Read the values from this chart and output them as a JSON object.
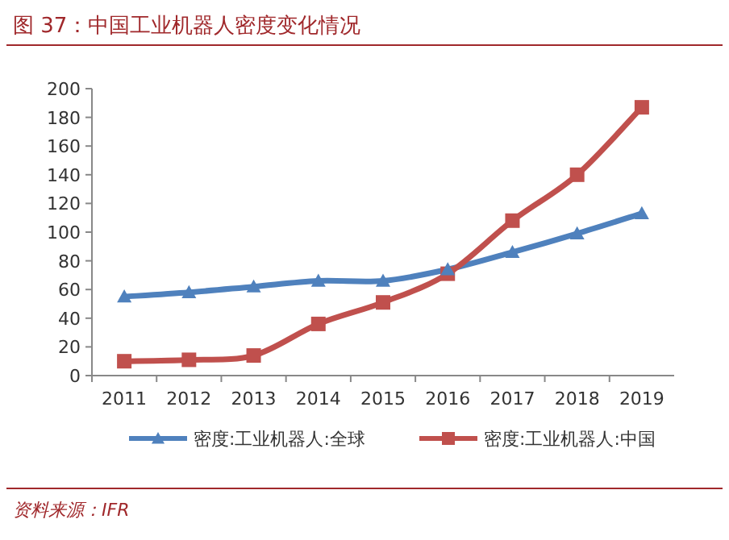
{
  "chart_data": {
    "type": "line",
    "title": "图 37：中国工业机器人密度变化情况",
    "annotations": [
      "资料来源：IFR"
    ],
    "categories": [
      "2011",
      "2012",
      "2013",
      "2014",
      "2015",
      "2016",
      "2017",
      "2018",
      "2019"
    ],
    "series": [
      {
        "name": "密度:工业机器人:全球",
        "color": "#4f81bd",
        "marker": "triangle",
        "values": [
          55,
          58,
          62,
          66,
          66,
          74,
          86,
          99,
          113
        ]
      },
      {
        "name": "密度:工业机器人:中国",
        "color": "#c0504d",
        "marker": "square",
        "values": [
          10,
          11,
          14,
          36,
          51,
          71,
          108,
          140,
          187
        ]
      }
    ],
    "ylim": [
      0,
      200
    ],
    "yticks": [
      0,
      20,
      40,
      60,
      80,
      100,
      120,
      140,
      160,
      180,
      200
    ],
    "grid": false,
    "legend": "bottom",
    "line_style": "solid"
  }
}
